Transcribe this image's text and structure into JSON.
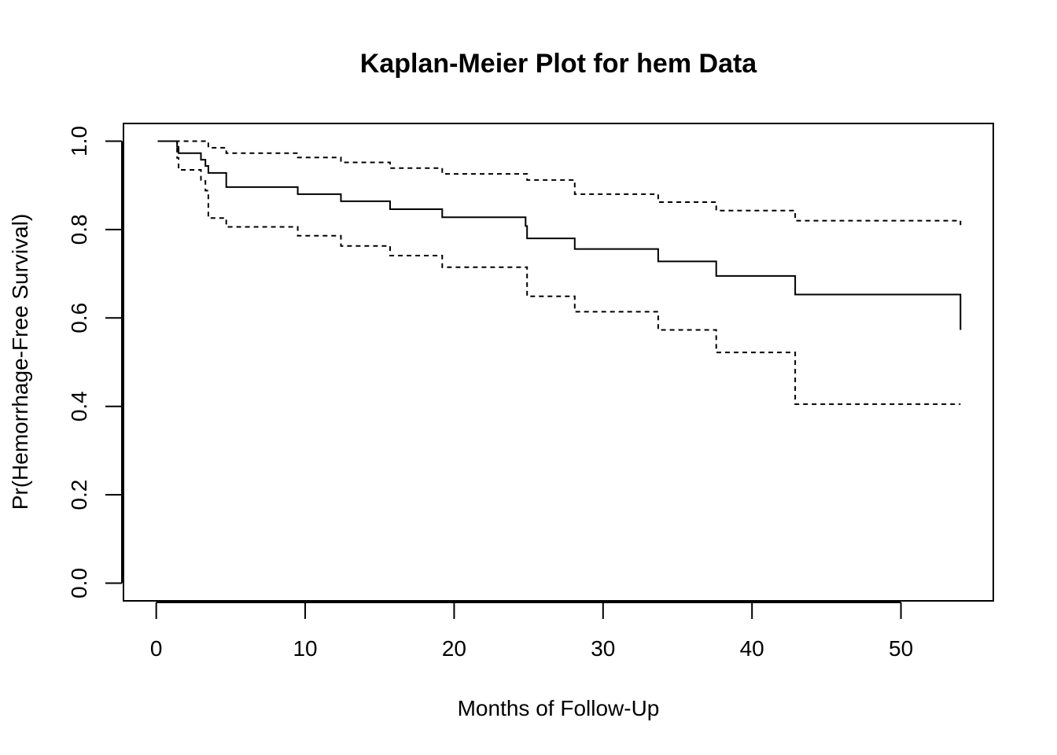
{
  "chart_data": {
    "type": "line",
    "title": "Kaplan-Meier Plot for hem Data",
    "xlabel": "Months of Follow-Up",
    "ylabel": "Pr(Hemorrhage-Free Survival)",
    "xlim": [
      -2.2,
      56.2
    ],
    "ylim": [
      -0.04,
      1.04
    ],
    "xticks": [
      0,
      10,
      20,
      30,
      40,
      50
    ],
    "xtick_labels": [
      "0",
      "10",
      "20",
      "30",
      "40",
      "50"
    ],
    "yticks": [
      0,
      0.2,
      0.4,
      0.6,
      0.8,
      1.0
    ],
    "ytick_labels": [
      "0.0",
      "0.2",
      "0.4",
      "0.6",
      "0.8",
      "1.0"
    ],
    "grid": false,
    "legend": false,
    "series": [
      {
        "role": "estimate",
        "style": "solid",
        "color": "#000000",
        "x": [
          0.1,
          1.4,
          1.5,
          3.0,
          3.3,
          3.5,
          4.7,
          9.5,
          12.4,
          15.7,
          19.2,
          24.8,
          24.9,
          28.1,
          33.7,
          37.6,
          42.9,
          54.0
        ],
        "y": [
          1.0,
          0.987,
          0.973,
          0.958,
          0.944,
          0.928,
          0.896,
          0.88,
          0.864,
          0.846,
          0.828,
          0.808,
          0.78,
          0.756,
          0.728,
          0.695,
          0.653,
          0.573
        ]
      },
      {
        "role": "upper-ci",
        "style": "dashed",
        "color": "#000000",
        "x": [
          0.1,
          3.3,
          3.5,
          4.7,
          9.5,
          12.4,
          15.7,
          19.2,
          24.9,
          28.1,
          33.7,
          37.6,
          42.9,
          54.0
        ],
        "y": [
          1.0,
          1.0,
          0.985,
          0.973,
          0.963,
          0.952,
          0.939,
          0.926,
          0.912,
          0.88,
          0.862,
          0.843,
          0.82,
          0.81
        ]
      },
      {
        "role": "lower-ci",
        "style": "dashed",
        "color": "#000000",
        "x": [
          0.1,
          1.4,
          1.5,
          3.0,
          3.3,
          3.5,
          4.7,
          9.5,
          12.4,
          15.7,
          19.2,
          24.9,
          28.1,
          33.7,
          37.6,
          42.9,
          54.0
        ],
        "y": [
          1.0,
          0.962,
          0.935,
          0.91,
          0.888,
          0.826,
          0.806,
          0.786,
          0.763,
          0.741,
          0.715,
          0.649,
          0.614,
          0.573,
          0.522,
          0.405,
          0.405
        ]
      }
    ]
  }
}
